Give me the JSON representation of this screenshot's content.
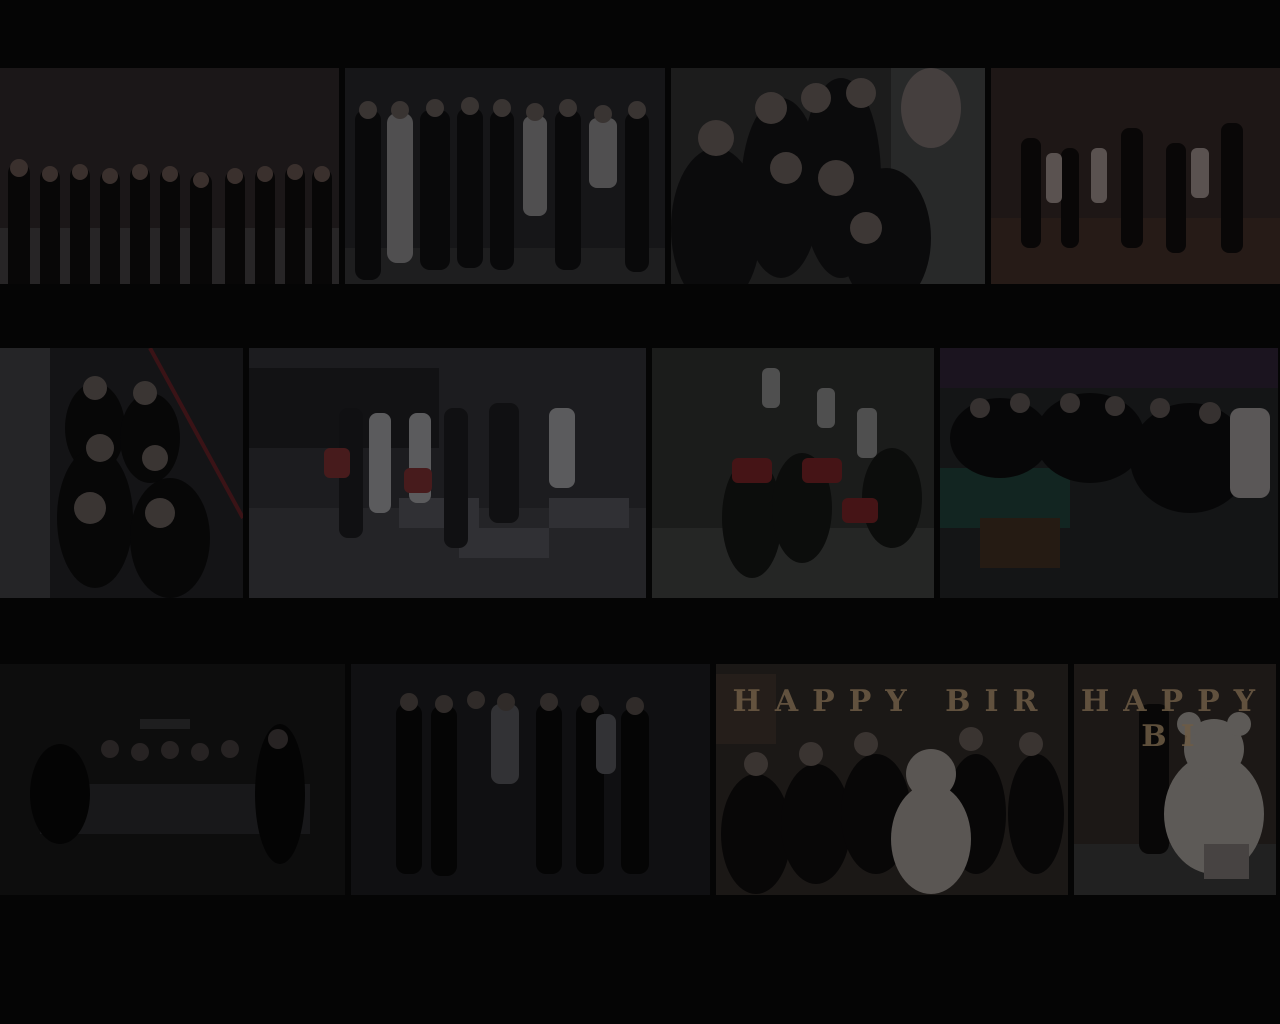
{
  "gallery": {
    "background": "#050505",
    "rows": [
      {
        "photos": [
          {
            "id": "group-photo-black-dresses-stage",
            "tone": "#2a2425"
          },
          {
            "id": "group-photo-studio-black-white",
            "tone": "#232325"
          },
          {
            "id": "selfie-group-photo",
            "tone": "#2b2b2c"
          },
          {
            "id": "dance-practice-photo",
            "tone": "#2e2422"
          }
        ]
      },
      {
        "photos": [
          {
            "id": "group-photo-staircase",
            "tone": "#1f1f22"
          },
          {
            "id": "classroom-group-photo",
            "tone": "#2c2c30"
          },
          {
            "id": "auditorium-group-photo",
            "tone": "#2a2c2a"
          },
          {
            "id": "party-room-group-photo",
            "tone": "#1f2123"
          }
        ]
      },
      {
        "photos": [
          {
            "id": "billiards-room-photo",
            "tone": "#141415"
          },
          {
            "id": "black-dress-group-photo",
            "tone": "#1a1a1c"
          },
          {
            "id": "birthday-party-photo",
            "tone": "#2a2522",
            "caption": "HAPPY BIR"
          },
          {
            "id": "birthday-teddy-bear-photo",
            "tone": "#2b2622",
            "caption": "HAPPY BI"
          }
        ]
      }
    ]
  }
}
